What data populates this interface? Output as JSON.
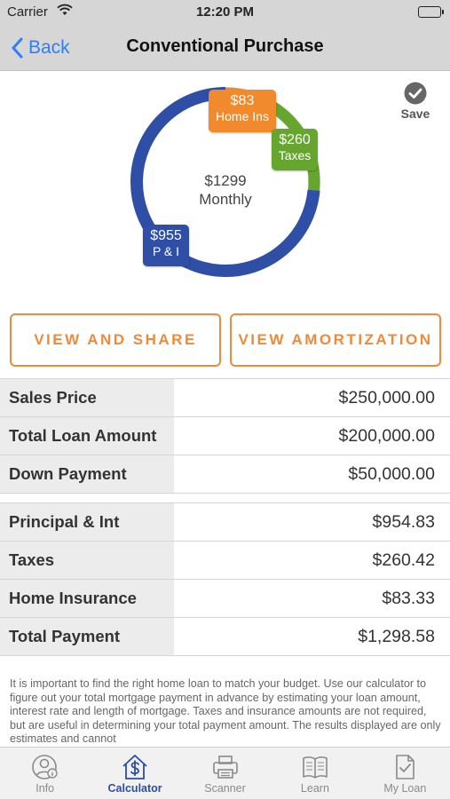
{
  "status_bar": {
    "carrier": "Carrier",
    "time": "12:20 PM"
  },
  "nav": {
    "back_label": "Back",
    "title": "Conventional Purchase"
  },
  "chart_data": {
    "type": "pie",
    "style": "donut",
    "center": {
      "amount": "$1299",
      "label": "Monthly"
    },
    "slices": [
      {
        "name": "Home Ins",
        "display": "$83",
        "value": 83.33,
        "color": "#f08a2c"
      },
      {
        "name": "Taxes",
        "display": "$260",
        "value": 260.42,
        "color": "#66a62f"
      },
      {
        "name": "P & I",
        "display": "$955",
        "value": 954.83,
        "color": "#2f4ea6"
      }
    ]
  },
  "save": {
    "label": "Save"
  },
  "actions": {
    "view_share": "VIEW AND SHARE",
    "view_amortization": "VIEW AMORTIZATION"
  },
  "loan_table": [
    {
      "label": "Sales Price",
      "value": "$250,000.00"
    },
    {
      "label": "Total Loan Amount",
      "value": "$200,000.00"
    },
    {
      "label": "Down Payment",
      "value": "$50,000.00"
    }
  ],
  "payment_table": [
    {
      "label": "Principal & Int",
      "value": "$954.83"
    },
    {
      "label": "Taxes",
      "value": "$260.42"
    },
    {
      "label": "Home Insurance",
      "value": "$83.33"
    },
    {
      "label": "Total Payment",
      "value": "$1,298.58"
    }
  ],
  "disclaimer": "It is important to find the right home loan to match your budget. Use our calculator to figure out your total mortgage payment in advance by estimating your loan amount, interest rate and length of mortgage. Taxes and insurance amounts are not required, but are useful in determining your total payment amount.  The results displayed are only estimates and cannot",
  "tabs": [
    {
      "label": "Info",
      "icon": "info-person-icon",
      "active": false
    },
    {
      "label": "Calculator",
      "icon": "calculator-house-icon",
      "active": true
    },
    {
      "label": "Scanner",
      "icon": "printer-icon",
      "active": false
    },
    {
      "label": "Learn",
      "icon": "book-icon",
      "active": false
    },
    {
      "label": "My Loan",
      "icon": "document-check-icon",
      "active": false
    }
  ],
  "colors": {
    "accent": "#ee8a3a",
    "nav_link": "#2d7ff9",
    "tab_active": "#2c4da3"
  }
}
